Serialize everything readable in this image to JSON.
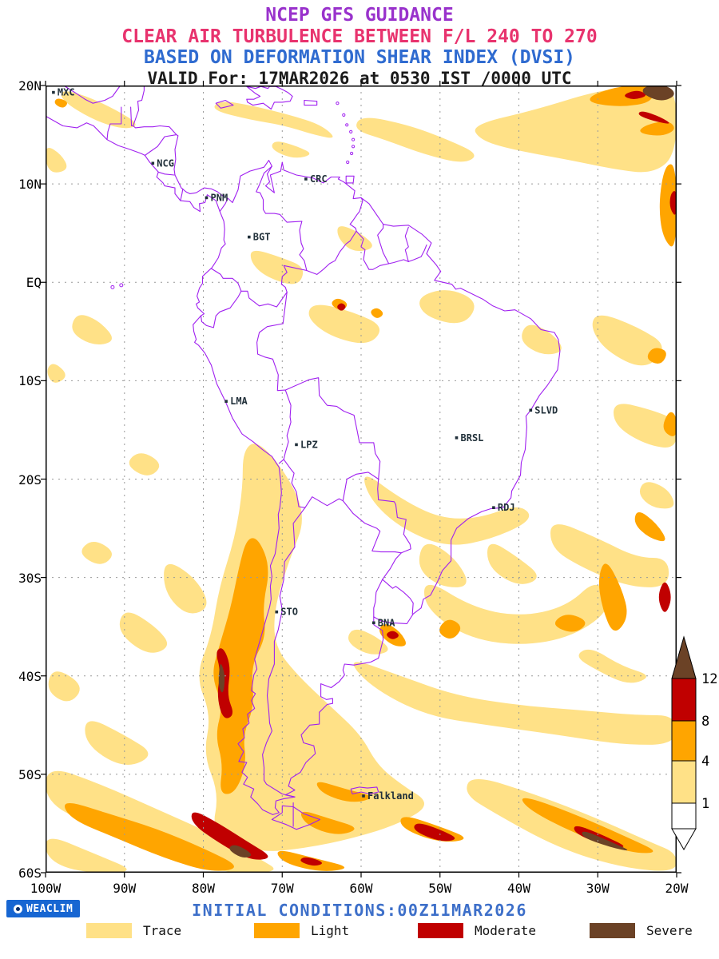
{
  "header": {
    "line1": "NCEP GFS GUIDANCE",
    "line2": "CLEAR AIR TURBULENCE BETWEEN F/L 240 TO 270",
    "line3": "BASED ON DEFORMATION SHEAR INDEX (DVSI)",
    "line4": "VALID For: 17MAR2026 at 0530 IST /0000 UTC"
  },
  "map": {
    "lat_labels": [
      "20N",
      "10N",
      "EQ",
      "10S",
      "20S",
      "30S",
      "40S",
      "50S",
      "60S"
    ],
    "lon_labels": [
      "100W",
      "90W",
      "80W",
      "70W",
      "60W",
      "50W",
      "40W",
      "30W",
      "20W"
    ],
    "cities": [
      {
        "name": "MXC",
        "lon": -99.0,
        "lat": 19.3
      },
      {
        "name": "NCG",
        "lon": -86.4,
        "lat": 12.1
      },
      {
        "name": "CRC",
        "lon": -67.0,
        "lat": 10.5
      },
      {
        "name": "PNM",
        "lon": -79.6,
        "lat": 8.6
      },
      {
        "name": "BGT",
        "lon": -74.2,
        "lat": 4.6
      },
      {
        "name": "LMA",
        "lon": -77.1,
        "lat": -12.1
      },
      {
        "name": "LPZ",
        "lon": -68.2,
        "lat": -16.5
      },
      {
        "name": "BRSL",
        "lon": -47.9,
        "lat": -15.8
      },
      {
        "name": "SLVD",
        "lon": -38.5,
        "lat": -13.0
      },
      {
        "name": "RDJ",
        "lon": -43.2,
        "lat": -22.9
      },
      {
        "name": "STO",
        "lon": -70.7,
        "lat": -33.5
      },
      {
        "name": "BNA",
        "lon": -58.4,
        "lat": -34.6
      },
      {
        "name": "Falkland",
        "lon": -59.7,
        "lat": -52.2
      }
    ]
  },
  "colorbar": {
    "values": [
      "12",
      "8",
      "4",
      "1"
    ]
  },
  "footer": {
    "logo_text": "WEACLIM",
    "initial_conditions": "INITIAL CONDITIONS:00Z11MAR2026",
    "legend": [
      {
        "label": "Trace",
        "key": "trace"
      },
      {
        "label": "Light",
        "key": "light"
      },
      {
        "label": "Moderate",
        "key": "moderate"
      },
      {
        "label": "Severe",
        "key": "severe"
      }
    ]
  },
  "colors": {
    "trace": "#FFE187",
    "light": "#FFA500",
    "moderate": "#C00000",
    "severe": "#6B4226",
    "map_outline": "#A020F0",
    "grid": "#999999",
    "frame": "#000000",
    "title1": "#9932CC",
    "title2": "#E8336E",
    "title3": "#2F6BD0",
    "title4": "#1A1A1A",
    "initial_conditions_text": "#3D6FC9",
    "logo_bg": "#1766D2",
    "city_label": "#21303A"
  }
}
